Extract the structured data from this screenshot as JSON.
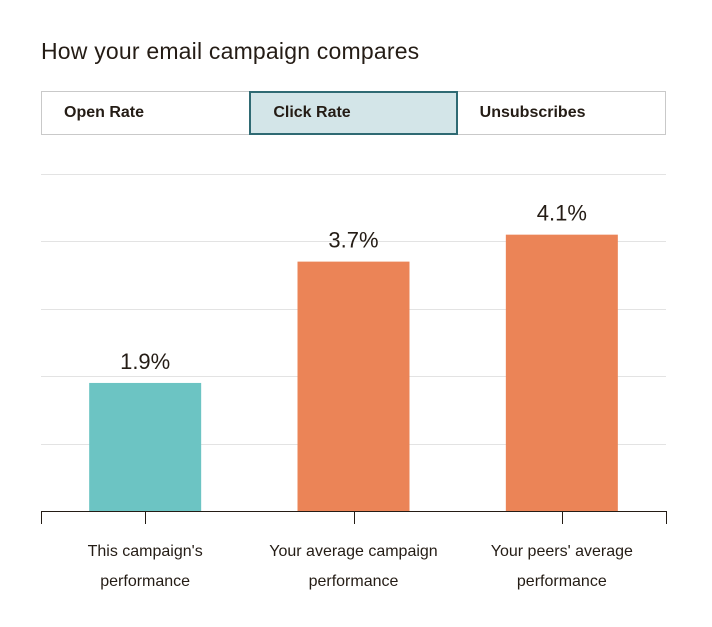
{
  "header": {
    "title": "How your email campaign compares"
  },
  "tabs": [
    {
      "label": "Open Rate",
      "active": false
    },
    {
      "label": "Click Rate",
      "active": true
    },
    {
      "label": "Unsubscribes",
      "active": false
    }
  ],
  "colors": {
    "current_campaign": "#6cc4c3",
    "comparison": "#eb8457",
    "active_tab_bg": "#d3e5e8",
    "active_tab_border": "#2f6a73",
    "grid": "#e3e3e3"
  },
  "chart_data": {
    "type": "bar",
    "title": "",
    "xlabel": "",
    "ylabel": "",
    "categories": [
      [
        "This campaign's",
        "performance"
      ],
      [
        "Your average campaign",
        "performance"
      ],
      [
        "Your peers' average",
        "performance"
      ]
    ],
    "values": [
      1.9,
      3.7,
      4.1
    ],
    "value_labels": [
      "1.9%",
      "3.7%",
      "4.1%"
    ],
    "bar_colors": [
      "#6cc4c3",
      "#eb8457",
      "#eb8457"
    ],
    "ylim": [
      0,
      5
    ],
    "grid": true,
    "legend": "none"
  }
}
